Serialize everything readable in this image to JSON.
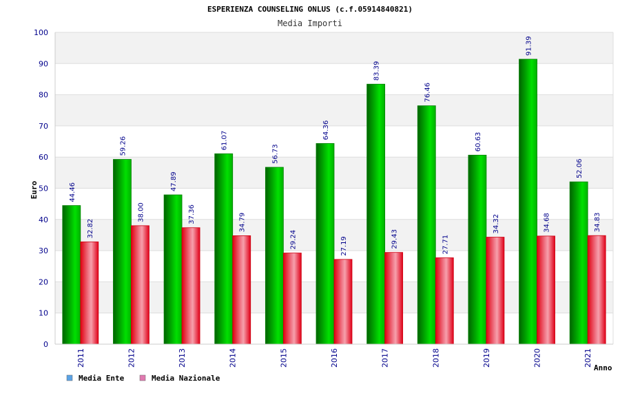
{
  "chart_data": {
    "type": "bar",
    "title": "ESPERIENZA COUNSELING ONLUS (c.f.05914840821)",
    "subtitle": "Media Importi",
    "xlabel": "Anno",
    "ylabel": "Euro",
    "ylim": [
      0,
      100
    ],
    "yticks": [
      0,
      10,
      20,
      30,
      40,
      50,
      60,
      70,
      80,
      90,
      100
    ],
    "grid": true,
    "legend_position": "bottom-left",
    "categories": [
      "2011",
      "2012",
      "2013",
      "2014",
      "2015",
      "2016",
      "2017",
      "2018",
      "2019",
      "2020",
      "2021"
    ],
    "series": [
      {
        "name": "Media Ente",
        "color": "#00c000",
        "legend_color": "#5ba3e6",
        "values": [
          44.46,
          59.26,
          47.89,
          61.07,
          56.73,
          64.36,
          83.39,
          76.46,
          60.63,
          91.39,
          52.06
        ],
        "labels": [
          "44.46",
          "59.26",
          "47.89",
          "61.07",
          "56.73",
          "64.36",
          "83.39",
          "76.46",
          "60.63",
          "91.39",
          "52.06"
        ]
      },
      {
        "name": "Media Nazionale",
        "color": "#e8001c",
        "legend_color": "#e07ab0",
        "values": [
          32.82,
          38.0,
          37.36,
          34.79,
          29.24,
          27.19,
          29.43,
          27.71,
          34.32,
          34.68,
          34.83
        ],
        "labels": [
          "32.82",
          "38.00",
          "37.36",
          "34.79",
          "29.24",
          "27.19",
          "29.43",
          "27.71",
          "34.32",
          "34.68",
          "34.83"
        ]
      }
    ]
  }
}
